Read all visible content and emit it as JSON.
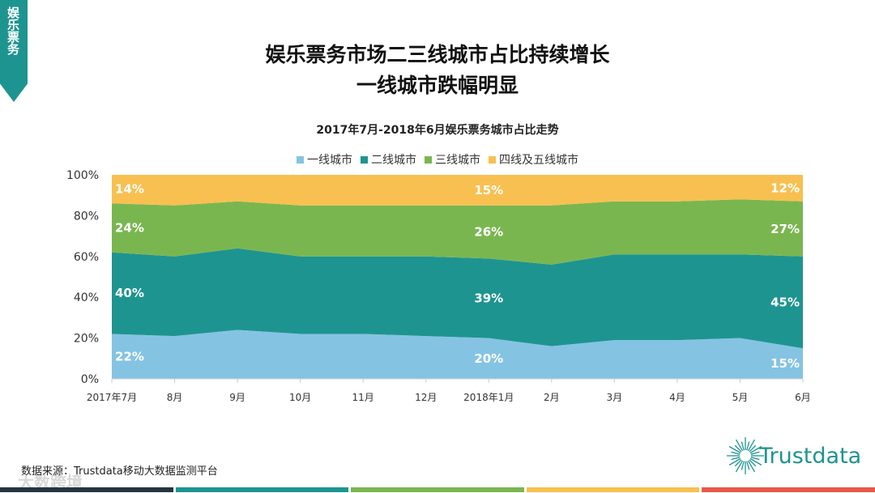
{
  "side_tab": "娱乐票务",
  "title_line1": "娱乐票务市场二三线城市占比持续增长",
  "title_line2": "一线城市跌幅明显",
  "source": "数据来源：Trustdata移动大数据监测平台",
  "watermark": "大数跨境",
  "logo_text": "Trustdata",
  "colors": {
    "accent": "#1e9490",
    "bars": [
      "#263440",
      "#1e9490",
      "#7ab650",
      "#f8c050",
      "#e8584a"
    ]
  },
  "chart_data": {
    "type": "area",
    "stacked": "percent",
    "title": "2017年7月-2018年6月娱乐票务城市占比走势",
    "categories": [
      "2017年7月",
      "8月",
      "9月",
      "10月",
      "11月",
      "12月",
      "2018年1月",
      "2月",
      "3月",
      "4月",
      "5月",
      "6月"
    ],
    "yticks": [
      "0%",
      "20%",
      "40%",
      "60%",
      "80%",
      "100%"
    ],
    "ylim": [
      0,
      100
    ],
    "legend_position": "top",
    "grid": false,
    "series": [
      {
        "name": "一线城市",
        "color": "#85c3e3",
        "values": [
          22,
          21,
          24,
          22,
          22,
          21,
          20,
          16,
          19,
          19,
          20,
          15
        ]
      },
      {
        "name": "二线城市",
        "color": "#1e9490",
        "values": [
          40,
          39,
          40,
          38,
          38,
          39,
          39,
          40,
          42,
          42,
          41,
          45
        ]
      },
      {
        "name": "三线城市",
        "color": "#7ab650",
        "values": [
          24,
          25,
          23,
          25,
          25,
          25,
          26,
          29,
          26,
          26,
          27,
          27
        ]
      },
      {
        "name": "四线及五线城市",
        "color": "#f8c050",
        "values": [
          14,
          15,
          13,
          15,
          15,
          15,
          15,
          15,
          13,
          13,
          12,
          12
        ]
      }
    ],
    "data_labels": {
      "indices": [
        0,
        6,
        11
      ],
      "labels": [
        [
          "22%",
          "40%",
          "24%",
          "14%"
        ],
        [
          "20%",
          "39%",
          "26%",
          "15%"
        ],
        [
          "15%",
          "45%",
          "27%",
          "12%"
        ]
      ]
    }
  }
}
